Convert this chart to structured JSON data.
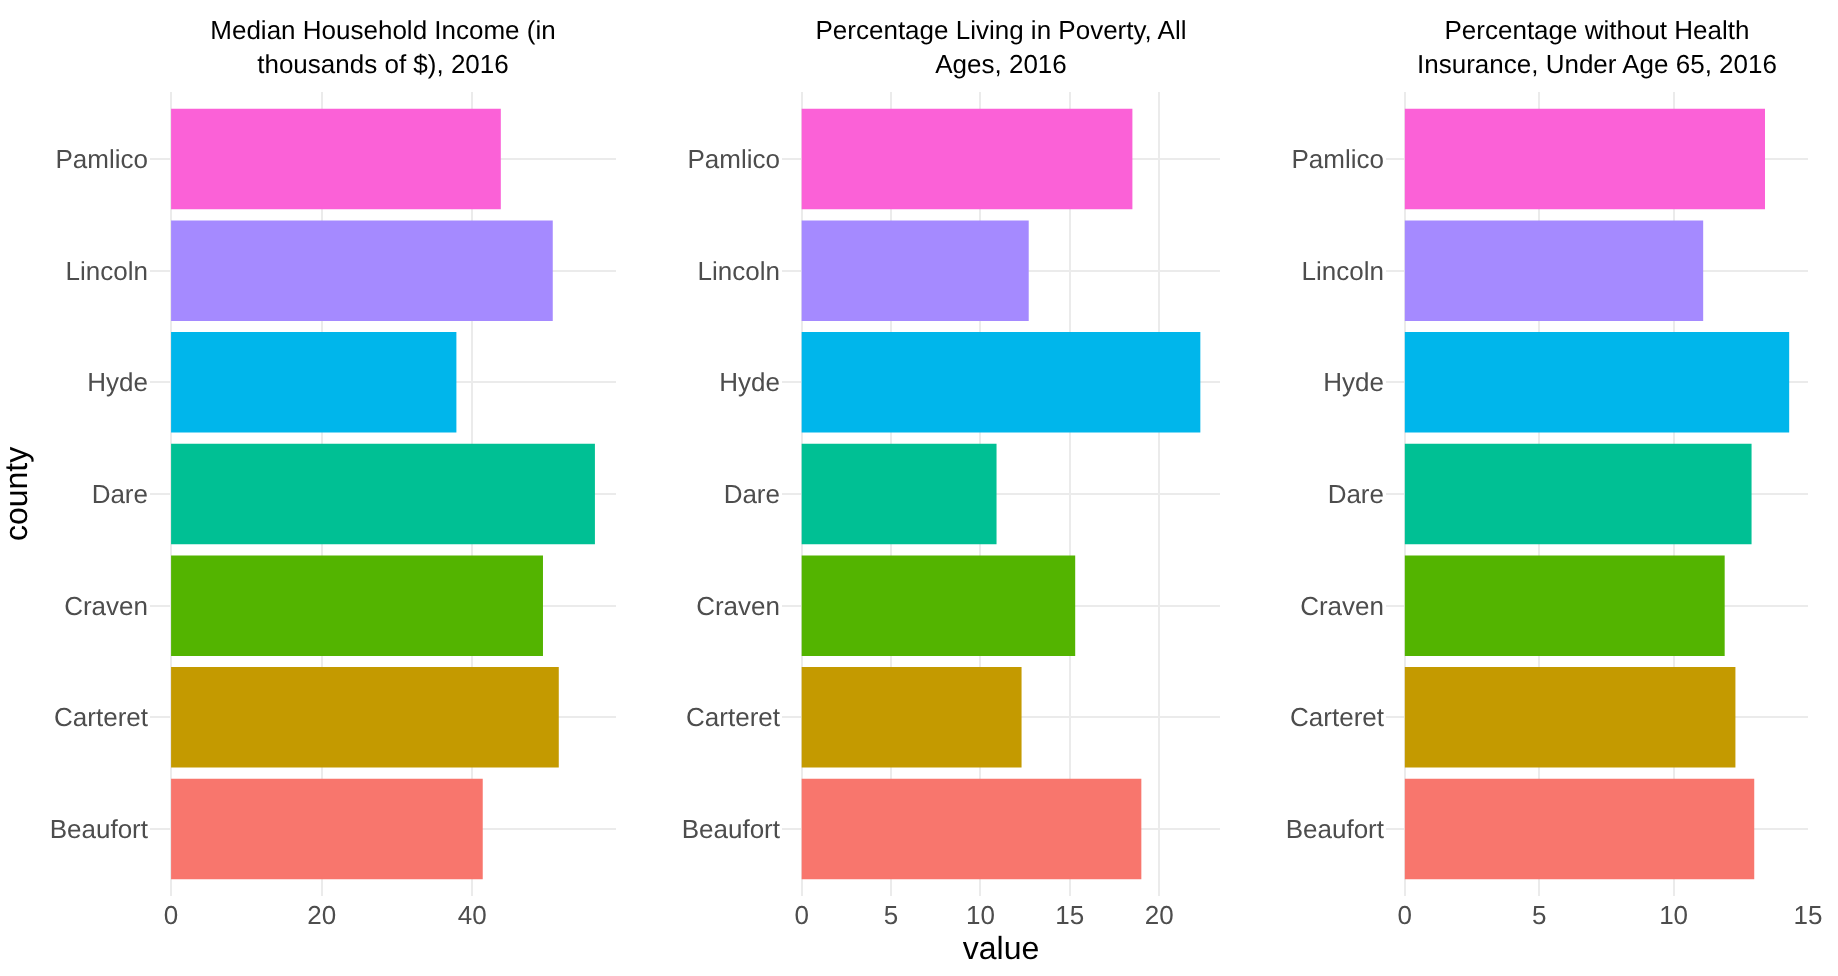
{
  "chart_data": [
    {
      "type": "bar",
      "orientation": "horizontal",
      "title": "Median Household Income (in thousands of $), 2016",
      "ylabel": "county",
      "categories": [
        "Pamlico",
        "Lincoln",
        "Hyde",
        "Dare",
        "Craven",
        "Carteret",
        "Beaufort"
      ],
      "values": [
        43.8,
        50.7,
        37.9,
        56.3,
        49.4,
        51.5,
        41.4
      ],
      "colors": [
        "#fb61d7",
        "#a58aff",
        "#00b6eb",
        "#00c094",
        "#53b400",
        "#c49a00",
        "#f8766d"
      ],
      "xlim": [
        -2.8,
        59.1
      ],
      "xticks": [
        0,
        20,
        40
      ],
      "grid": true
    },
    {
      "type": "bar",
      "orientation": "horizontal",
      "title": "Percentage Living in Poverty, All Ages, 2016",
      "xlabel": "value",
      "categories": [
        "Pamlico",
        "Lincoln",
        "Hyde",
        "Dare",
        "Craven",
        "Carteret",
        "Beaufort"
      ],
      "values": [
        18.5,
        12.7,
        22.3,
        10.9,
        15.3,
        12.3,
        19.0
      ],
      "colors": [
        "#fb61d7",
        "#a58aff",
        "#00b6eb",
        "#00c094",
        "#53b400",
        "#c49a00",
        "#f8766d"
      ],
      "xlim": [
        -1.1,
        23.4
      ],
      "xticks": [
        0,
        5,
        10,
        15,
        20
      ],
      "grid": true
    },
    {
      "type": "bar",
      "orientation": "horizontal",
      "title": "Percentage without Health Insurance, Under Age 65, 2016",
      "categories": [
        "Pamlico",
        "Lincoln",
        "Hyde",
        "Dare",
        "Craven",
        "Carteret",
        "Beaufort"
      ],
      "values": [
        13.4,
        11.1,
        14.3,
        12.9,
        11.9,
        12.3,
        13.0
      ],
      "colors": [
        "#fb61d7",
        "#a58aff",
        "#00b6eb",
        "#00c094",
        "#53b400",
        "#c49a00",
        "#f8766d"
      ],
      "xlim": [
        -0.7,
        15.0
      ],
      "xticks": [
        0,
        5,
        10,
        15
      ],
      "grid": true
    }
  ]
}
